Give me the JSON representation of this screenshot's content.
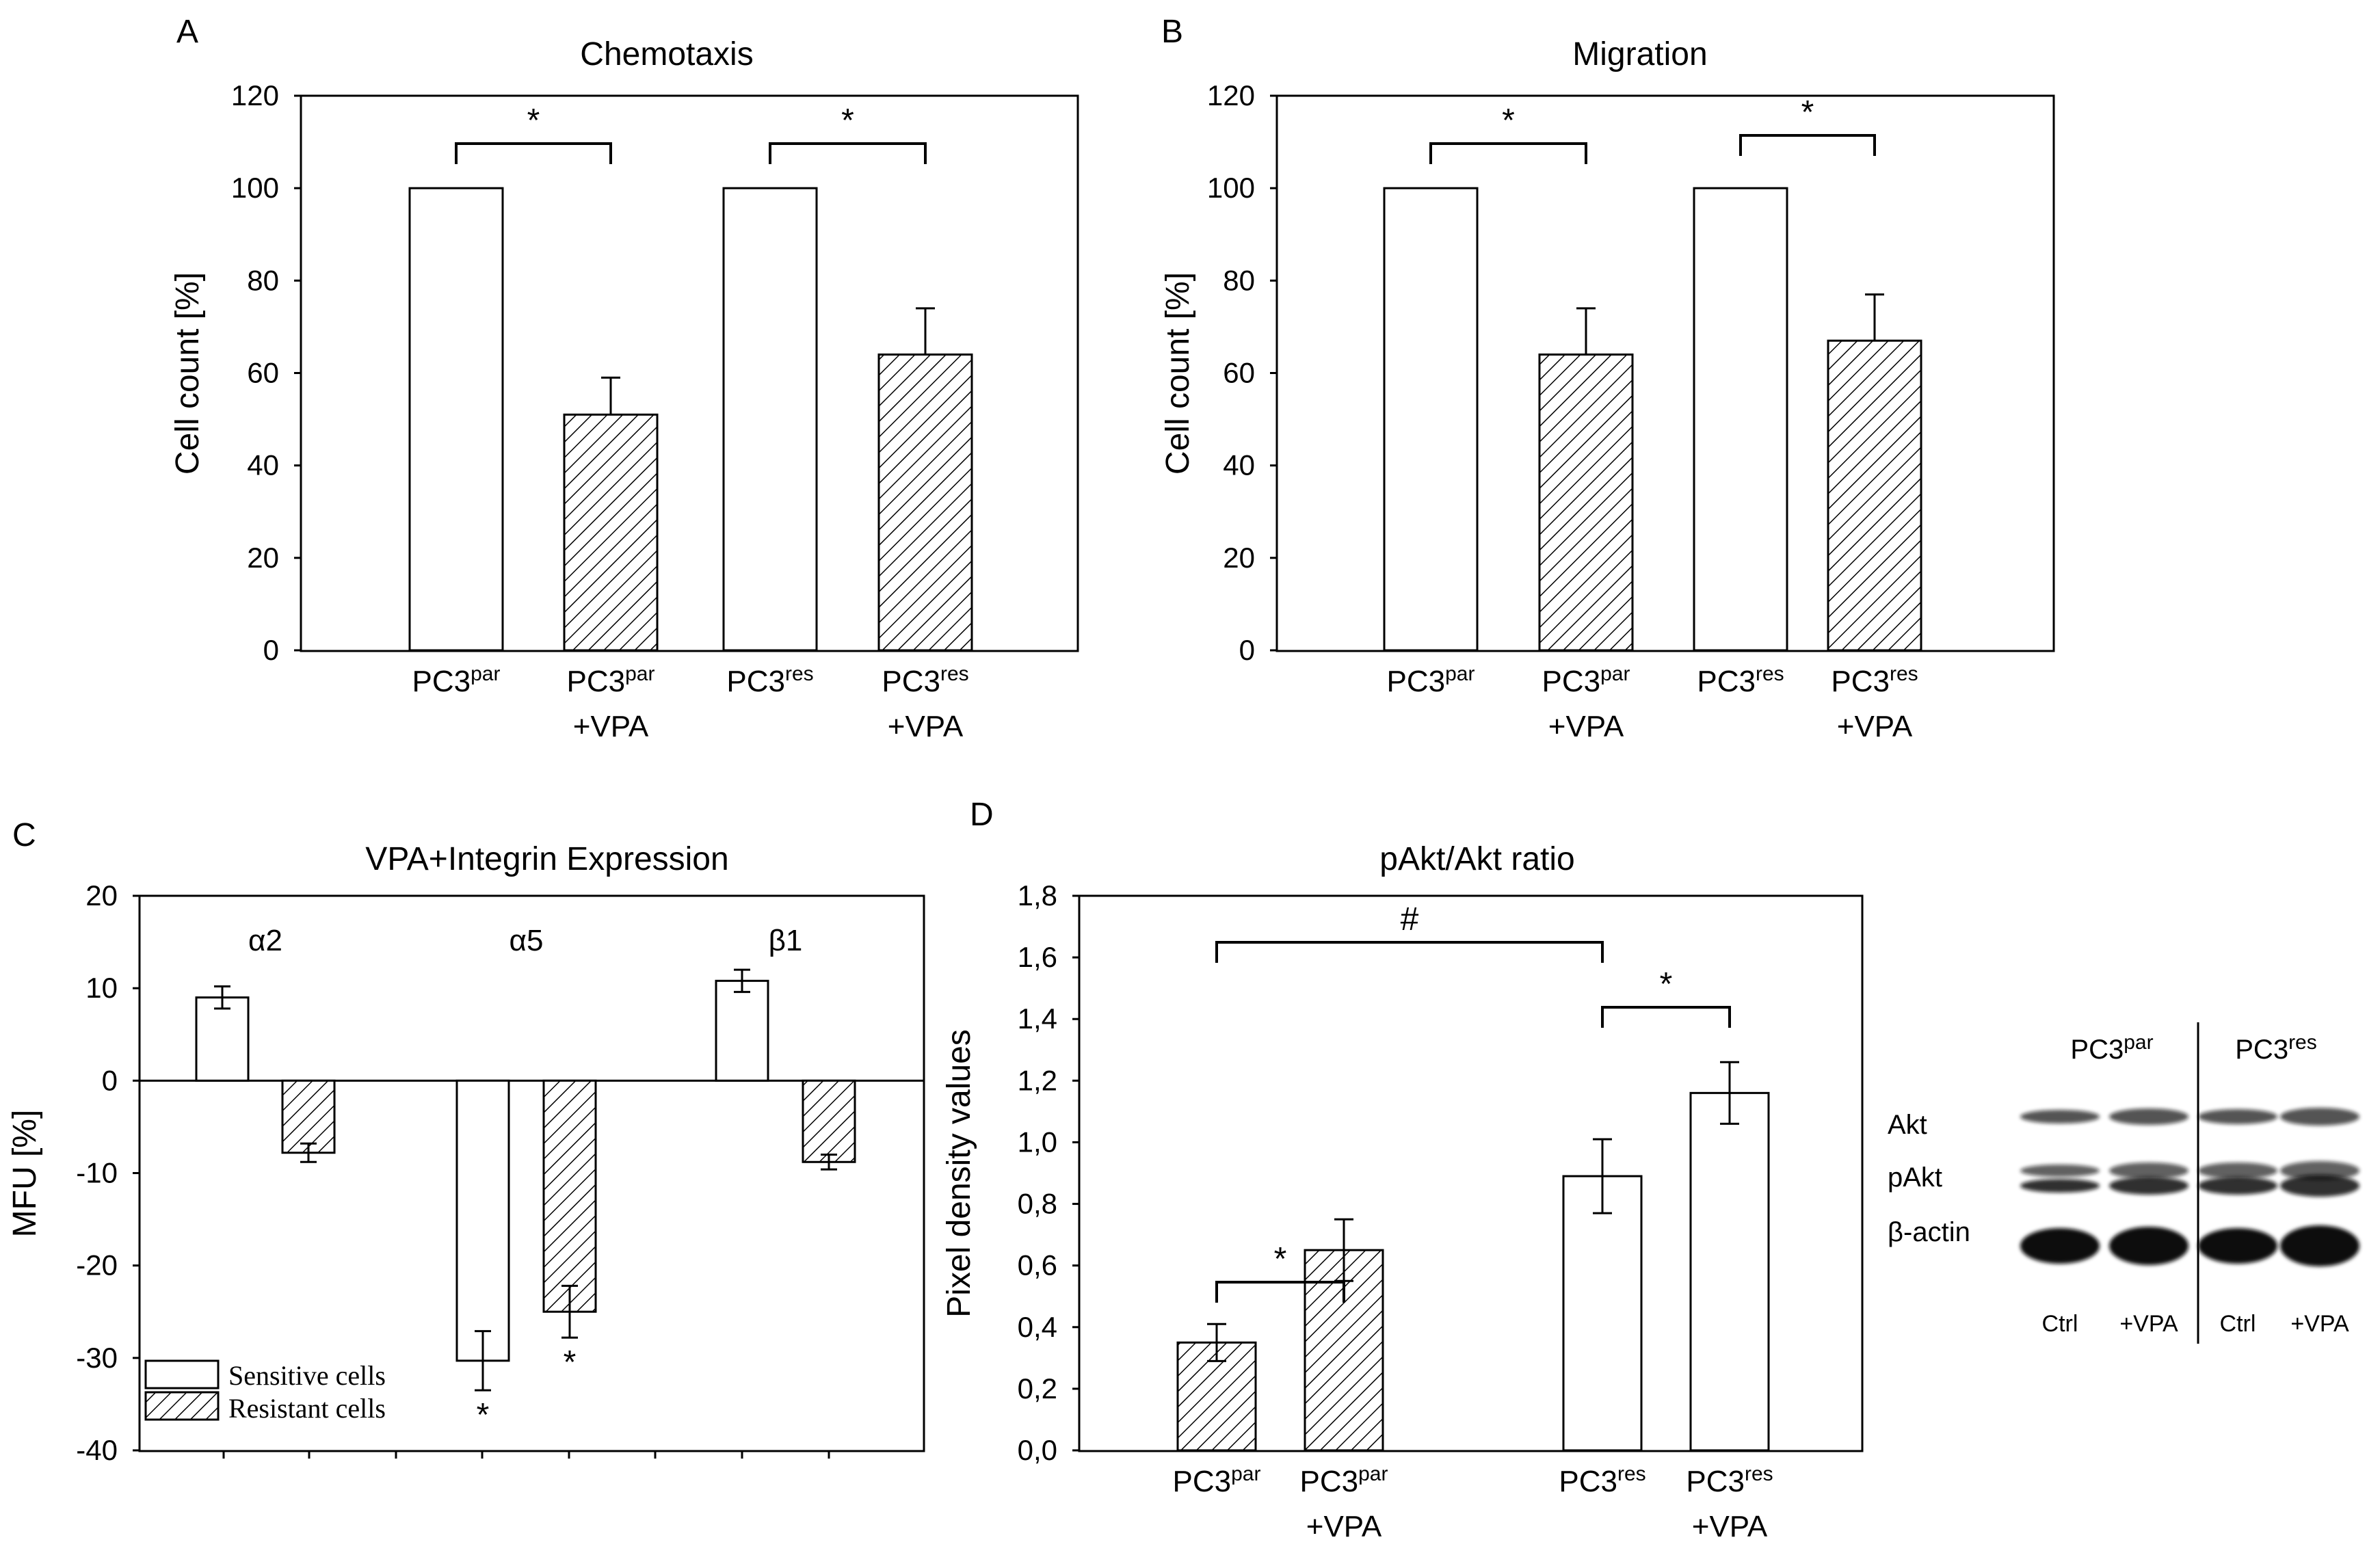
{
  "chart_data": [
    {
      "panel": "A",
      "type": "bar",
      "title": "Chemotaxis",
      "ylabel": "Cell count [%]",
      "ylim": [
        0,
        120
      ],
      "yticks": [
        "0",
        "20",
        "40",
        "60",
        "80",
        "100",
        "120"
      ],
      "categories": [
        {
          "base": "PC3",
          "sup": "par",
          "line2": ""
        },
        {
          "base": "PC3",
          "sup": "par",
          "line2": "+VPA"
        },
        {
          "base": "PC3",
          "sup": "res",
          "line2": ""
        },
        {
          "base": "PC3",
          "sup": "res",
          "line2": "+VPA"
        }
      ],
      "values": [
        100,
        51,
        100,
        64
      ],
      "errors": [
        0,
        8,
        0,
        10
      ],
      "fill": [
        "open",
        "hatched",
        "open",
        "hatched"
      ],
      "significance": [
        {
          "from": 0,
          "to": 1,
          "label": "*"
        },
        {
          "from": 2,
          "to": 3,
          "label": "*"
        }
      ]
    },
    {
      "panel": "B",
      "type": "bar",
      "title": "Migration",
      "ylabel": "Cell count [%]",
      "ylim": [
        0,
        120
      ],
      "yticks": [
        "0",
        "20",
        "40",
        "60",
        "80",
        "100",
        "120"
      ],
      "categories": [
        {
          "base": "PC3",
          "sup": "par",
          "line2": ""
        },
        {
          "base": "PC3",
          "sup": "par",
          "line2": "+VPA"
        },
        {
          "base": "PC3",
          "sup": "res",
          "line2": ""
        },
        {
          "base": "PC3",
          "sup": "res",
          "line2": "+VPA"
        }
      ],
      "values": [
        100,
        64,
        100,
        67
      ],
      "errors": [
        0,
        10,
        0,
        10
      ],
      "fill": [
        "open",
        "hatched",
        "open",
        "hatched"
      ],
      "significance": [
        {
          "from": 0,
          "to": 1,
          "label": "*"
        },
        {
          "from": 2,
          "to": 3,
          "label": "*"
        }
      ]
    },
    {
      "panel": "C",
      "type": "bar",
      "title": "VPA+Integrin  Expression",
      "ylabel": "MFU [%]",
      "ylim": [
        -40,
        20
      ],
      "yticks": [
        "-40",
        "-30",
        "-20",
        "-10",
        "0",
        "10",
        "20"
      ],
      "groups": [
        "α2",
        "α5",
        "β1"
      ],
      "series": [
        {
          "name": "Sensitive cells",
          "fill": "open",
          "values": [
            9,
            -30.3,
            10.8
          ],
          "errors": [
            1.2,
            3.2,
            1.2
          ]
        },
        {
          "name": "Resistant cells",
          "fill": "hatched",
          "values": [
            -7.8,
            -25,
            -8.8
          ],
          "errors": [
            1.0,
            2.8,
            0.8
          ]
        }
      ],
      "bar_marks": [
        {
          "group": 1,
          "series": 0,
          "label": "*"
        },
        {
          "group": 1,
          "series": 1,
          "label": "*"
        }
      ],
      "legend": "bottom-left"
    },
    {
      "panel": "D",
      "type": "bar",
      "title": "pAkt/Akt ratio",
      "ylabel": "Pixel density values",
      "ylim": [
        0,
        1.8
      ],
      "yticks": [
        "0,0",
        "0,2",
        "0,4",
        "0,6",
        "0,8",
        "1,0",
        "1,2",
        "1,4",
        "1,6",
        "1,8"
      ],
      "categories": [
        {
          "base": "PC3",
          "sup": "par",
          "line2": ""
        },
        {
          "base": "PC3",
          "sup": "par",
          "line2": "+VPA"
        },
        {
          "base": "PC3",
          "sup": "res",
          "line2": ""
        },
        {
          "base": "PC3",
          "sup": "res",
          "line2": "+VPA"
        }
      ],
      "values": [
        0.35,
        0.65,
        0.89,
        1.16
      ],
      "errors": [
        0.06,
        0.1,
        0.12,
        0.1
      ],
      "fill": [
        "hatched",
        "hatched",
        "open",
        "open"
      ],
      "significance": [
        {
          "from": 0,
          "to": 1,
          "label": "*"
        },
        {
          "from": 0,
          "to": 2,
          "label": "#"
        },
        {
          "from": 2,
          "to": 3,
          "label": "*"
        }
      ]
    }
  ],
  "blot": {
    "column_groups": [
      {
        "base": "PC3",
        "sup": "par"
      },
      {
        "base": "PC3",
        "sup": "res"
      }
    ],
    "rows": [
      "Akt",
      "pAkt",
      "β-actin"
    ],
    "lanes": [
      "Ctrl",
      "+VPA",
      "Ctrl",
      "+VPA"
    ]
  }
}
